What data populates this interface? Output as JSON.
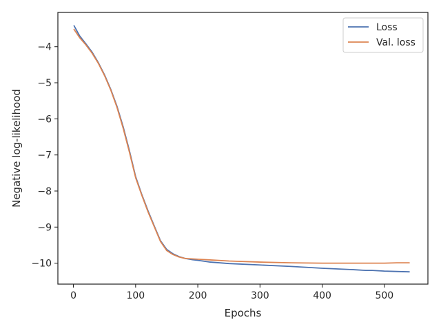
{
  "chart_data": {
    "type": "line",
    "title": "",
    "xlabel": "Epochs",
    "ylabel": "Negative log-likelihood",
    "xlim": [
      -25,
      570
    ],
    "ylim": [
      -10.58,
      -3.05
    ],
    "xticks": [
      0,
      100,
      200,
      300,
      400,
      500
    ],
    "yticks": [
      -10,
      -9,
      -8,
      -7,
      -6,
      -5,
      -4
    ],
    "x_tick_labels": [
      "0",
      "100",
      "200",
      "300",
      "400",
      "500"
    ],
    "y_tick_labels": [
      "−10",
      "−9",
      "−8",
      "−7",
      "−6",
      "−5",
      "−4"
    ],
    "grid": false,
    "legend_position": "top-right",
    "series": [
      {
        "name": "Loss",
        "color": "#4c72b0",
        "x": [
          1,
          10,
          20,
          30,
          40,
          50,
          60,
          70,
          80,
          90,
          100,
          110,
          120,
          130,
          140,
          150,
          160,
          170,
          180,
          190,
          200,
          220,
          250,
          300,
          350,
          400,
          450,
          470,
          480,
          500,
          520,
          540
        ],
        "y": [
          -3.42,
          -3.7,
          -3.92,
          -4.15,
          -4.44,
          -4.78,
          -5.18,
          -5.65,
          -6.22,
          -6.88,
          -7.6,
          -8.1,
          -8.55,
          -8.97,
          -9.38,
          -9.62,
          -9.74,
          -9.82,
          -9.87,
          -9.9,
          -9.92,
          -9.97,
          -10.01,
          -10.05,
          -10.09,
          -10.14,
          -10.18,
          -10.2,
          -10.2,
          -10.22,
          -10.23,
          -10.24
        ]
      },
      {
        "name": "Val. loss",
        "color": "#dd8452",
        "x": [
          1,
          10,
          20,
          30,
          40,
          50,
          60,
          70,
          80,
          90,
          100,
          110,
          120,
          130,
          140,
          150,
          160,
          170,
          180,
          190,
          200,
          220,
          250,
          300,
          350,
          400,
          450,
          470,
          480,
          500,
          520,
          540
        ],
        "y": [
          -3.52,
          -3.75,
          -3.95,
          -4.18,
          -4.46,
          -4.8,
          -5.2,
          -5.68,
          -6.26,
          -6.92,
          -7.63,
          -8.12,
          -8.58,
          -8.99,
          -9.4,
          -9.65,
          -9.76,
          -9.83,
          -9.87,
          -9.88,
          -9.89,
          -9.91,
          -9.94,
          -9.97,
          -9.99,
          -10.0,
          -10.0,
          -10.0,
          -10.0,
          -10.0,
          -9.99,
          -9.99
        ]
      }
    ]
  }
}
